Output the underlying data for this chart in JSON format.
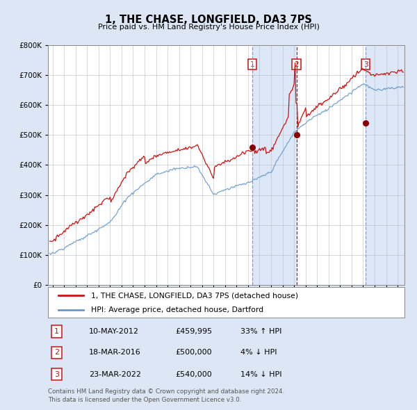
{
  "title": "1, THE CHASE, LONGFIELD, DA3 7PS",
  "subtitle": "Price paid vs. HM Land Registry's House Price Index (HPI)",
  "footer1": "Contains HM Land Registry data © Crown copyright and database right 2024.",
  "footer2": "This data is licensed under the Open Government Licence v3.0.",
  "legend1": "1, THE CHASE, LONGFIELD, DA3 7PS (detached house)",
  "legend2": "HPI: Average price, detached house, Dartford",
  "transactions": [
    {
      "num": 1,
      "date": "10-MAY-2012",
      "price": "£459,995",
      "pct": "33% ↑ HPI",
      "year": 2012.37
    },
    {
      "num": 2,
      "date": "18-MAR-2016",
      "price": "£500,000",
      "pct": "4% ↓ HPI",
      "year": 2016.21
    },
    {
      "num": 3,
      "date": "23-MAR-2022",
      "price": "£540,000",
      "pct": "14% ↓ HPI",
      "year": 2022.22
    }
  ],
  "sale_prices": [
    459995,
    500000,
    540000
  ],
  "sale_years": [
    2012.37,
    2016.21,
    2022.22
  ],
  "background_color": "#dde6f5",
  "plot_bg": "#ffffff",
  "red_line_color": "#cc1111",
  "blue_line_color": "#6699cc",
  "shade_color": "#dce8f8",
  "grid_color": "#bbbbbb",
  "vline1_color": "#9999bb",
  "vline2_color": "#cc1111",
  "vline3_color": "#9999bb",
  "ylim": [
    0,
    800000
  ],
  "yticks": [
    0,
    100000,
    200000,
    300000,
    400000,
    500000,
    600000,
    700000,
    800000
  ],
  "xlim_start": 1994.6,
  "xlim_end": 2025.6
}
